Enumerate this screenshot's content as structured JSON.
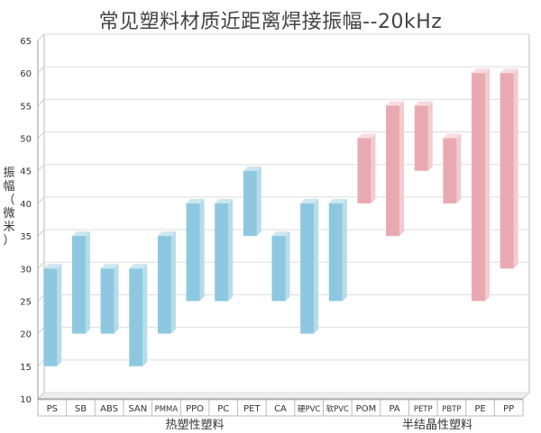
{
  "chart_data": {
    "type": "bar",
    "title": "常见塑料材质近距离焊接振幅--20kHz",
    "ylabel": "振幅（微米）",
    "ylim": [
      10,
      65
    ],
    "yticks": [
      10,
      15,
      20,
      25,
      30,
      35,
      40,
      45,
      50,
      55,
      60,
      65
    ],
    "grid": true,
    "colors": {
      "amorphous_front": "#8ec8e0",
      "amorphous_side": "#b7dcea",
      "amorphous_top": "#cde7f1",
      "semicrystalline_front": "#e8aab0",
      "semicrystalline_side": "#f2cbcf",
      "semicrystalline_top": "#f7dde0"
    },
    "categories": [
      "PS",
      "SB",
      "ABS",
      "SAN",
      "PMMA",
      "PPO",
      "PC",
      "PET",
      "CA",
      "硬PVC",
      "软PVC",
      "POM",
      "PA",
      "PETP",
      "PBTP",
      "PE",
      "PP"
    ],
    "ranges": [
      [
        15,
        30
      ],
      [
        20,
        35
      ],
      [
        20,
        30
      ],
      [
        15,
        30
      ],
      [
        20,
        35
      ],
      [
        25,
        40
      ],
      [
        25,
        40
      ],
      [
        35,
        45
      ],
      [
        25,
        35
      ],
      [
        20,
        40
      ],
      [
        25,
        40
      ],
      [
        40,
        50
      ],
      [
        35,
        55
      ],
      [
        45,
        55
      ],
      [
        40,
        50
      ],
      [
        25,
        60
      ],
      [
        30,
        60
      ]
    ],
    "groups": [
      {
        "name": "热塑性塑料",
        "start": 0,
        "end": 10,
        "type": "amorphous"
      },
      {
        "name": "半结晶性塑料",
        "start": 11,
        "end": 16,
        "type": "semicrystalline"
      }
    ]
  }
}
